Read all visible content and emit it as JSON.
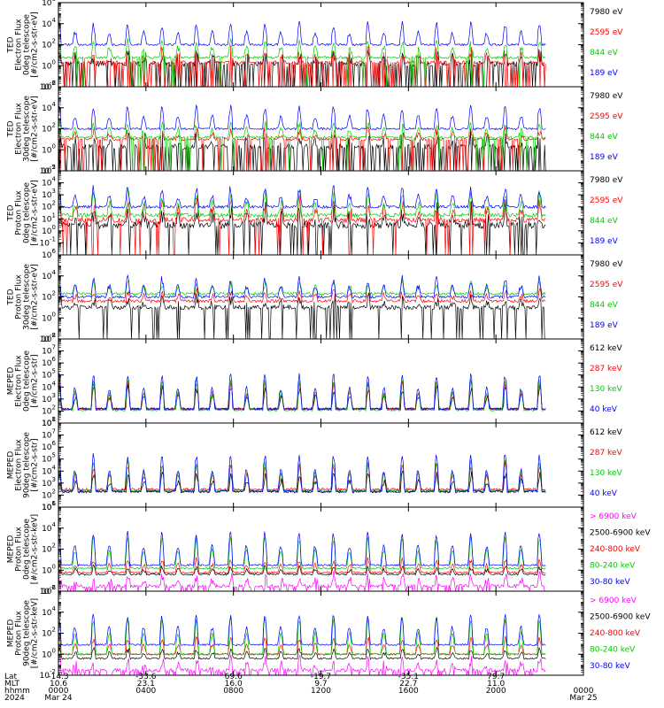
{
  "colors": {
    "black": "#000000",
    "red": "#ff0000",
    "green": "#00cc00",
    "blue": "#0000ff",
    "magenta": "#ff00ff"
  },
  "chart_data": [
    {
      "type": "line",
      "scale": "log",
      "ylabel": [
        "TED",
        "Electron Flux",
        "0deg telescope",
        "[#/cm2-s-str-eV]"
      ],
      "ylim": [
        0.01,
        1000000
      ],
      "yticks": [
        {
          "exp": "-2",
          "v": 0.01
        },
        {
          "exp": "0",
          "v": 1
        },
        {
          "exp": "2",
          "v": 100
        },
        {
          "exp": "4",
          "v": 10000
        },
        {
          "exp": "6",
          "v": 1000000
        }
      ],
      "series": [
        {
          "name": "7980 eV",
          "color": "black",
          "base": 1.5,
          "peak": 10,
          "noise": 1.2,
          "gap": 0.3
        },
        {
          "name": "2595 eV",
          "color": "red",
          "base": 2,
          "peak": 25,
          "noise": 0.8,
          "gap": 0.2
        },
        {
          "name": "844 eV",
          "color": "green",
          "base": 6,
          "peak": 200,
          "noise": 0.6,
          "gap": 0.05
        },
        {
          "name": "189 eV",
          "color": "blue",
          "base": 100,
          "peak": 8000,
          "noise": 0.5,
          "gap": 0
        }
      ]
    },
    {
      "type": "line",
      "scale": "log",
      "ylabel": [
        "TED",
        "Electron Flux",
        "30deg telescope",
        "[#/cm2-s-str-eV]"
      ],
      "ylim": [
        0.01,
        1000000
      ],
      "yticks": [
        {
          "exp": "-2",
          "v": 0.01
        },
        {
          "exp": "0",
          "v": 1
        },
        {
          "exp": "2",
          "v": 100
        },
        {
          "exp": "4",
          "v": 10000
        },
        {
          "exp": "6",
          "v": 1000000
        }
      ],
      "series": [
        {
          "name": "7980 eV",
          "color": "black",
          "base": 2,
          "peak": 15,
          "noise": 1.2,
          "gap": 0.3
        },
        {
          "name": "2595 eV",
          "color": "red",
          "base": 10,
          "peak": 60,
          "noise": 0.6,
          "gap": 0.1
        },
        {
          "name": "844 eV",
          "color": "green",
          "base": 15,
          "peak": 300,
          "noise": 0.5,
          "gap": 0.05
        },
        {
          "name": "189 eV",
          "color": "blue",
          "base": 100,
          "peak": 10000,
          "noise": 0.5,
          "gap": 0
        }
      ]
    },
    {
      "type": "line",
      "scale": "log",
      "ylabel": [
        "TED",
        "Proton Flux",
        "0deg telescope",
        "[#/cm2-s-str-eV]"
      ],
      "ylim": [
        0.01,
        100000
      ],
      "yticks": [
        {
          "exp": "-1",
          "v": 0.1
        },
        {
          "exp": "0",
          "v": 1
        },
        {
          "exp": "1",
          "v": 10
        },
        {
          "exp": "2",
          "v": 100
        },
        {
          "exp": "3",
          "v": 1000
        },
        {
          "exp": "4",
          "v": 10000
        },
        {
          "exp": "5",
          "v": 100000
        }
      ],
      "series": [
        {
          "name": "7980 eV",
          "color": "black",
          "base": 3,
          "peak": 40,
          "noise": 1.4,
          "gap": 0.1
        },
        {
          "name": "2595 eV",
          "color": "red",
          "base": 8,
          "peak": 200,
          "noise": 1.0,
          "gap": 0.05
        },
        {
          "name": "844 eV",
          "color": "green",
          "base": 20,
          "peak": 800,
          "noise": 0.8,
          "gap": 0
        },
        {
          "name": "189 eV",
          "color": "blue",
          "base": 100,
          "peak": 3000,
          "noise": 0.6,
          "gap": 0
        }
      ]
    },
    {
      "type": "line",
      "scale": "log",
      "ylabel": [
        "TED",
        "Proton Flux",
        "30deg telescope",
        "[#/cm2-s-str-eV]"
      ],
      "ylim": [
        0.01,
        1000000
      ],
      "yticks": [
        {
          "exp": "-2",
          "v": 0.01
        },
        {
          "exp": "0",
          "v": 1
        },
        {
          "exp": "2",
          "v": 100
        },
        {
          "exp": "4",
          "v": 10000
        },
        {
          "exp": "6",
          "v": 1000000
        }
      ],
      "series": [
        {
          "name": "7980 eV",
          "color": "black",
          "base": 10,
          "peak": 60,
          "noise": 1.0,
          "gap": 0.1
        },
        {
          "name": "2595 eV",
          "color": "red",
          "base": 40,
          "peak": 300,
          "noise": 0.7,
          "gap": 0
        },
        {
          "name": "844 eV",
          "color": "green",
          "base": 200,
          "peak": 2000,
          "noise": 0.6,
          "gap": 0
        },
        {
          "name": "189 eV",
          "color": "blue",
          "base": 100,
          "peak": 5000,
          "noise": 0.6,
          "gap": 0
        }
      ]
    },
    {
      "type": "line",
      "scale": "log",
      "ylabel": [
        "MEPED",
        "Electron Flux",
        "0deg telescope",
        "[#/cm2-s-str]"
      ],
      "ylim": [
        10,
        100000000
      ],
      "yticks": [
        {
          "exp": "1",
          "v": 10
        },
        {
          "exp": "2",
          "v": 100
        },
        {
          "exp": "3",
          "v": 1000
        },
        {
          "exp": "4",
          "v": 10000
        },
        {
          "exp": "5",
          "v": 100000
        },
        {
          "exp": "6",
          "v": 1000000
        },
        {
          "exp": "7",
          "v": 10000000
        },
        {
          "exp": "8",
          "v": 100000000
        }
      ],
      "series": [
        {
          "name": "612 keV",
          "color": "black",
          "base": 150,
          "peak": 8000,
          "noise": 0.5,
          "gap": 0
        },
        {
          "name": "287 keV",
          "color": "red",
          "base": 150,
          "peak": 20000,
          "noise": 0.4,
          "gap": 0
        },
        {
          "name": "130 keV",
          "color": "green",
          "base": 120,
          "peak": 30000,
          "noise": 0.4,
          "gap": 0
        },
        {
          "name": "40 keV",
          "color": "blue",
          "base": 150,
          "peak": 100000,
          "noise": 0.4,
          "gap": 0
        }
      ]
    },
    {
      "type": "line",
      "scale": "log",
      "ylabel": [
        "MEPED",
        "Electron Flux",
        "90deg telescope",
        "[#/cm2-s-str]"
      ],
      "ylim": [
        10,
        100000000
      ],
      "yticks": [
        {
          "exp": "1",
          "v": 10
        },
        {
          "exp": "2",
          "v": 100
        },
        {
          "exp": "3",
          "v": 1000
        },
        {
          "exp": "4",
          "v": 10000
        },
        {
          "exp": "5",
          "v": 100000
        },
        {
          "exp": "6",
          "v": 1000000
        },
        {
          "exp": "7",
          "v": 10000000
        },
        {
          "exp": "8",
          "v": 100000000
        }
      ],
      "series": [
        {
          "name": "612 keV",
          "color": "black",
          "base": 200,
          "peak": 5000,
          "noise": 0.6,
          "gap": 0
        },
        {
          "name": "287 keV",
          "color": "red",
          "base": 300,
          "peak": 30000,
          "noise": 0.5,
          "gap": 0
        },
        {
          "name": "130 keV",
          "color": "green",
          "base": 250,
          "peak": 50000,
          "noise": 0.4,
          "gap": 0
        },
        {
          "name": "40 keV",
          "color": "blue",
          "base": 200,
          "peak": 200000,
          "noise": 0.4,
          "gap": 0
        }
      ]
    },
    {
      "type": "line",
      "scale": "log",
      "ylabel": [
        "MEPED",
        "Proton Flux",
        "0deg telescope",
        "[#/cm2-s-str-keV]"
      ],
      "ylim": [
        0.01,
        1000000
      ],
      "yticks": [
        {
          "exp": "-2",
          "v": 0.01
        },
        {
          "exp": "0",
          "v": 1
        },
        {
          "exp": "2",
          "v": 100
        },
        {
          "exp": "4",
          "v": 10000
        },
        {
          "exp": "6",
          "v": 1000000
        }
      ],
      "series": [
        {
          "name": "> 6900 keV",
          "color": "magenta",
          "base": 0.03,
          "peak": 0.3,
          "noise": 0.8,
          "gap": 0.2
        },
        {
          "name": "2500-6900 keV",
          "color": "black",
          "base": 0.4,
          "peak": 2,
          "noise": 0.4,
          "gap": 0
        },
        {
          "name": "240-800 keV",
          "color": "red",
          "base": 0.6,
          "peak": 10,
          "noise": 0.4,
          "gap": 0
        },
        {
          "name": "80-240 keV",
          "color": "green",
          "base": 1.5,
          "peak": 1000,
          "noise": 0.4,
          "gap": 0
        },
        {
          "name": "30-80 keV",
          "color": "blue",
          "base": 3,
          "peak": 3000,
          "noise": 0.4,
          "gap": 0
        }
      ]
    },
    {
      "type": "line",
      "scale": "log",
      "ylabel": [
        "MEPED",
        "Proton Flux",
        "90deg telescope",
        "[#/cm2-s-str-keV]"
      ],
      "ylim": [
        0.01,
        1000000
      ],
      "yticks": [
        {
          "exp": "-2",
          "v": 0.01
        },
        {
          "exp": "0",
          "v": 1
        },
        {
          "exp": "2",
          "v": 100
        },
        {
          "exp": "4",
          "v": 10000
        },
        {
          "exp": "6",
          "v": 1000000
        }
      ],
      "series": [
        {
          "name": "> 6900 keV",
          "color": "magenta",
          "base": 0.03,
          "peak": 0.3,
          "noise": 0.8,
          "gap": 0.2
        },
        {
          "name": "2500-6900 keV",
          "color": "black",
          "base": 0.4,
          "peak": 3,
          "noise": 0.4,
          "gap": 0
        },
        {
          "name": "240-800 keV",
          "color": "red",
          "base": 1,
          "peak": 30,
          "noise": 0.4,
          "gap": 0
        },
        {
          "name": "80-240 keV",
          "color": "green",
          "base": 1,
          "peak": 2000,
          "noise": 0.4,
          "gap": 0
        },
        {
          "name": "30-80 keV",
          "color": "blue",
          "base": 8,
          "peak": 4000,
          "noise": 0.4,
          "gap": 0
        }
      ]
    }
  ],
  "xaxis": {
    "row_labels": [
      "Lat",
      "MLT",
      "hhmm",
      "2024"
    ],
    "columns": [
      {
        "lat": "-14.3",
        "mlt": "10.6",
        "hhmm": "0000",
        "date": "Mar 24"
      },
      {
        "lat": "-33.6",
        "mlt": "23.1",
        "hhmm": "0400",
        "date": ""
      },
      {
        "lat": "69.6",
        "mlt": "16.0",
        "hhmm": "0800",
        "date": ""
      },
      {
        "lat": "-19.7",
        "mlt": "9.7",
        "hhmm": "1200",
        "date": ""
      },
      {
        "lat": "-35.1",
        "mlt": "22.7",
        "hhmm": "1600",
        "date": ""
      },
      {
        "lat": "79.7",
        "mlt": "11.0",
        "hhmm": "2000",
        "date": ""
      },
      {
        "lat": "",
        "mlt": "",
        "hhmm": "0000",
        "date": "Mar 25"
      }
    ],
    "data_fraction": 0.928
  }
}
